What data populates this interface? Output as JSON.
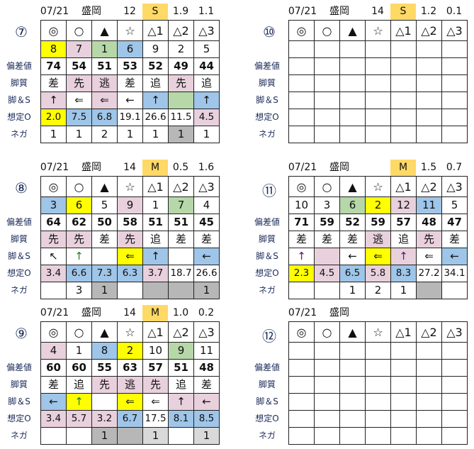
{
  "colors": {
    "Y": "#ffff00",
    "P": "#e8d0dc",
    "G": "#b6d7a8",
    "B": "#9fc5e8",
    "K": "#b7b7b7",
    "L": "#d9d9d9",
    "S": "#ffd966",
    "M": "#ffd966"
  },
  "row_labels": [
    "偏差値",
    "脚質",
    "脚＆S",
    "想定O",
    "ネガ"
  ],
  "marks": [
    "◎",
    "○",
    "▲",
    "☆",
    "△1",
    "△2",
    "△3"
  ],
  "blocks": [
    {
      "race": "⑦",
      "date": "07/21",
      "venue": "盛岡",
      "count": "12",
      "pace": "S",
      "v1": "1.9",
      "v2": "1.1",
      "horses": [
        [
          "8",
          "Y"
        ],
        [
          "7",
          "P"
        ],
        [
          "1",
          "G"
        ],
        [
          "6",
          "B"
        ],
        [
          "9",
          ""
        ],
        [
          "2",
          ""
        ],
        [
          "5",
          ""
        ]
      ],
      "dev": [
        "74",
        "54",
        "51",
        "53",
        "52",
        "49",
        "44"
      ],
      "style": [
        [
          "差",
          ""
        ],
        [
          "先",
          "P"
        ],
        [
          "逃",
          "P"
        ],
        [
          "差",
          ""
        ],
        [
          "追",
          ""
        ],
        [
          "先",
          "P"
        ],
        [
          "追",
          ""
        ]
      ],
      "ashi": [
        [
          "↑",
          "P"
        ],
        [
          "⇐",
          ""
        ],
        [
          "⇐",
          "P"
        ],
        [
          "←",
          ""
        ],
        [
          "↑",
          "B"
        ],
        [
          "",
          "G"
        ],
        [
          "↑",
          "B"
        ]
      ],
      "odds": [
        [
          "2.0",
          "Y"
        ],
        [
          "7.5",
          "B"
        ],
        [
          "6.8",
          "B"
        ],
        [
          "19.1",
          ""
        ],
        [
          "26.6",
          ""
        ],
        [
          "11.5",
          ""
        ],
        [
          "4.5",
          "P"
        ]
      ],
      "nega": [
        [
          "1",
          ""
        ],
        [
          "1",
          ""
        ],
        [
          "2",
          ""
        ],
        [
          "1",
          ""
        ],
        [
          "1",
          ""
        ],
        [
          "1",
          "K"
        ],
        [
          "1",
          ""
        ]
      ]
    },
    {
      "race": "⑩",
      "date": "07/21",
      "venue": "盛岡",
      "count": "14",
      "pace": "S",
      "v1": "1.2",
      "v2": "0.1"
    },
    {
      "race": "⑧",
      "date": "07/21",
      "venue": "盛岡",
      "count": "14",
      "pace": "M",
      "v1": "0.5",
      "v2": "1.6",
      "horses": [
        [
          "3",
          "B"
        ],
        [
          "6",
          "Y"
        ],
        [
          "5",
          ""
        ],
        [
          "9",
          "P"
        ],
        [
          "1",
          ""
        ],
        [
          "7",
          "G"
        ],
        [
          "4",
          ""
        ]
      ],
      "dev": [
        "64",
        "62",
        "50",
        "58",
        "51",
        "51",
        "45"
      ],
      "style": [
        [
          "先",
          "P"
        ],
        [
          "先",
          "P"
        ],
        [
          "差",
          ""
        ],
        [
          "先",
          "P"
        ],
        [
          "追",
          ""
        ],
        [
          "差",
          ""
        ],
        [
          "差",
          ""
        ]
      ],
      "ashi": [
        [
          "↖",
          ""
        ],
        [
          "↑",
          "",
          "#2a7a2a"
        ],
        [
          "",
          ""
        ],
        [
          "⇐",
          "Y"
        ],
        [
          "↑",
          "B"
        ],
        [
          "",
          ""
        ],
        [
          "←",
          "B"
        ]
      ],
      "odds": [
        [
          "3.4",
          "P"
        ],
        [
          "6.6",
          "B"
        ],
        [
          "7.3",
          "B"
        ],
        [
          "6.3",
          "B"
        ],
        [
          "3.7",
          "P"
        ],
        [
          "18.7",
          ""
        ],
        [
          "26.6",
          ""
        ]
      ],
      "nega": [
        [
          "",
          ""
        ],
        [
          "3",
          ""
        ],
        [
          "1",
          "K"
        ],
        [
          "",
          ""
        ],
        [
          "",
          "K"
        ],
        [
          "",
          "K"
        ],
        [
          "1",
          "K"
        ]
      ]
    },
    {
      "race": "⑪",
      "date": "07/21",
      "venue": "盛岡",
      "count": "",
      "pace": "M",
      "v1": "1.5",
      "v2": "0.7",
      "horses": [
        [
          "10",
          ""
        ],
        [
          "3",
          ""
        ],
        [
          "6",
          "G"
        ],
        [
          "2",
          "Y"
        ],
        [
          "12",
          "P"
        ],
        [
          "11",
          "B"
        ],
        [
          "5",
          ""
        ]
      ],
      "dev": [
        "71",
        "59",
        "52",
        "59",
        "57",
        "48",
        "47"
      ],
      "style": [
        [
          "差",
          ""
        ],
        [
          "差",
          ""
        ],
        [
          "差",
          ""
        ],
        [
          "逃",
          "P"
        ],
        [
          "追",
          ""
        ],
        [
          "先",
          "P"
        ],
        [
          "差",
          ""
        ]
      ],
      "ashi": [
        [
          "↑",
          "",
          "#5a1a6a"
        ],
        [
          "",
          "P"
        ],
        [
          "←",
          ""
        ],
        [
          "⇐",
          "Y"
        ],
        [
          "↑",
          "P",
          "#5a1a6a"
        ],
        [
          "⇐",
          ""
        ],
        [
          "←",
          "B"
        ]
      ],
      "odds": [
        [
          "2.3",
          "Y"
        ],
        [
          "4.5",
          "P"
        ],
        [
          "6.5",
          "B"
        ],
        [
          "5.8",
          "P"
        ],
        [
          "8.3",
          "B"
        ],
        [
          "27.2",
          ""
        ],
        [
          "34.1",
          ""
        ]
      ],
      "nega": [
        [
          "",
          ""
        ],
        [
          "",
          ""
        ],
        [
          "1",
          ""
        ],
        [
          "2",
          ""
        ],
        [
          "1",
          ""
        ],
        [
          "",
          "K"
        ],
        [
          "",
          ""
        ]
      ]
    },
    {
      "race": "⑨",
      "date": "07/21",
      "venue": "盛岡",
      "count": "14",
      "pace": "M",
      "v1": "1.0",
      "v2": "0.2",
      "horses": [
        [
          "4",
          "P"
        ],
        [
          "1",
          ""
        ],
        [
          "8",
          "B"
        ],
        [
          "2",
          "Y"
        ],
        [
          "10",
          ""
        ],
        [
          "9",
          "G"
        ],
        [
          "11",
          ""
        ]
      ],
      "dev": [
        "60",
        "60",
        "55",
        "63",
        "57",
        "51",
        "48"
      ],
      "style": [
        [
          "差",
          ""
        ],
        [
          "追",
          ""
        ],
        [
          "先",
          "P"
        ],
        [
          "逃",
          "P"
        ],
        [
          "先",
          "P"
        ],
        [
          "追",
          ""
        ],
        [
          "差",
          ""
        ]
      ],
      "ashi": [
        [
          "←",
          "B"
        ],
        [
          "↑",
          "Y",
          "#2a7a2a"
        ],
        [
          "",
          ""
        ],
        [
          "⇐",
          "Y"
        ],
        [
          "⇐",
          ""
        ],
        [
          "↑",
          "P"
        ],
        [
          "←",
          "P"
        ]
      ],
      "odds": [
        [
          "3.4",
          "P"
        ],
        [
          "5.7",
          "P"
        ],
        [
          "3.2",
          "P"
        ],
        [
          "6.7",
          "B"
        ],
        [
          "17.5",
          ""
        ],
        [
          "8.1",
          "B"
        ],
        [
          "8.5",
          "B"
        ]
      ],
      "nega": [
        [
          "",
          ""
        ],
        [
          "",
          ""
        ],
        [
          "1",
          "K"
        ],
        [
          "",
          "K"
        ],
        [
          "1",
          "L"
        ],
        [
          "",
          ""
        ],
        [
          "1",
          "L"
        ]
      ]
    },
    {
      "race": "⑫",
      "date": "07/21",
      "venue": "盛岡",
      "count": "",
      "pace": "",
      "v1": "",
      "v2": ""
    }
  ]
}
